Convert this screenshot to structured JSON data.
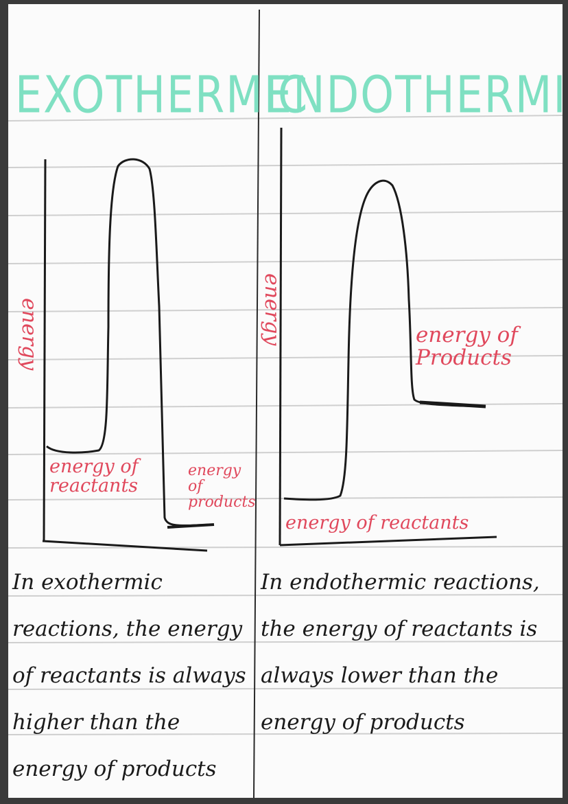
{
  "exothermic": {
    "title": "EXOTHERMIC",
    "axis_label": "energy",
    "reactants_label": "energy of reactants",
    "products_label": "energy of products",
    "description": "In exothermic reactions, the energy of reactants is always higher than the energy of products"
  },
  "endothermic": {
    "title": "ENDOTHERMIC",
    "axis_label": "energy",
    "reactants_label": "energy of reactants",
    "products_label": "energy of Products",
    "description": "In endothermic reactions, the energy of reactants is always lower than the energy of products"
  },
  "colors": {
    "title": "#7fe0c2",
    "label": "#e0485c",
    "ink": "#1a1a1a",
    "rule": "#c9c9c9"
  }
}
